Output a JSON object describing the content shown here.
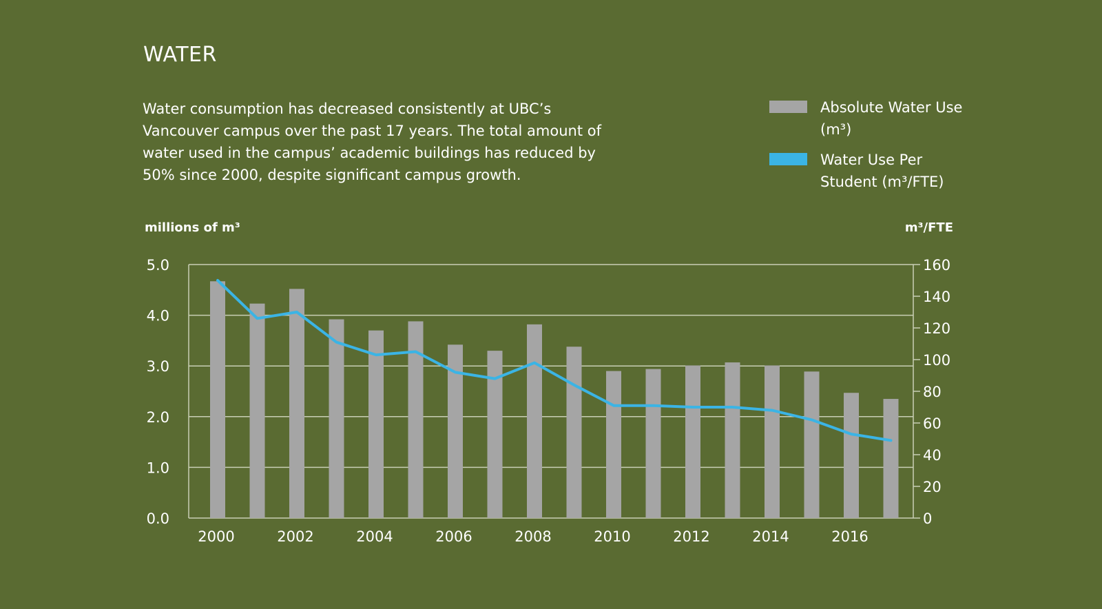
{
  "title": "WATER",
  "description": "Water consumption has decreased consistently at UBC’s Vancouver campus over the past 17 years. The total amount of water used in the campus’ academic buildings has reduced by 50% since 2000, despite significant campus growth.",
  "colors": {
    "background": "#5a6b32",
    "bar": "#a5a5a5",
    "line": "#3bb4e5",
    "grid": "#c9cfb6",
    "text": "#ffffff"
  },
  "chart_data": {
    "type": "bar",
    "title": "WATER",
    "x": [
      2000,
      2001,
      2002,
      2003,
      2004,
      2005,
      2006,
      2007,
      2008,
      2009,
      2010,
      2011,
      2012,
      2013,
      2014,
      2015,
      2016,
      2017
    ],
    "x_tick_labels": [
      "2000",
      "2002",
      "2004",
      "2006",
      "2008",
      "2010",
      "2012",
      "2014",
      "2016"
    ],
    "left_axis": {
      "label": "millions of m³",
      "ylim": [
        0,
        5
      ],
      "ticks": [
        "0.0",
        "1.0",
        "2.0",
        "3.0",
        "4.0",
        "5.0"
      ]
    },
    "right_axis": {
      "label": "m³/FTE",
      "ylim": [
        0,
        160
      ],
      "ticks": [
        "0",
        "20",
        "40",
        "60",
        "80",
        "100",
        "120",
        "140",
        "160"
      ]
    },
    "series": [
      {
        "name": "Absolute Water Use (m³)",
        "type": "bar",
        "axis": "left",
        "values": [
          4.67,
          4.23,
          4.52,
          3.92,
          3.7,
          3.88,
          3.42,
          3.3,
          3.82,
          3.38,
          2.9,
          2.94,
          3.01,
          3.07,
          3.01,
          2.89,
          2.47,
          2.35
        ]
      },
      {
        "name": "Water Use Per Student (m³/FTE)",
        "type": "line",
        "axis": "right",
        "values": [
          150,
          126,
          130,
          111,
          103,
          105,
          92,
          88,
          98,
          84,
          71,
          71,
          70,
          70,
          68,
          62,
          53,
          49
        ]
      }
    ],
    "grid": true,
    "legend_placement": "top-right"
  }
}
